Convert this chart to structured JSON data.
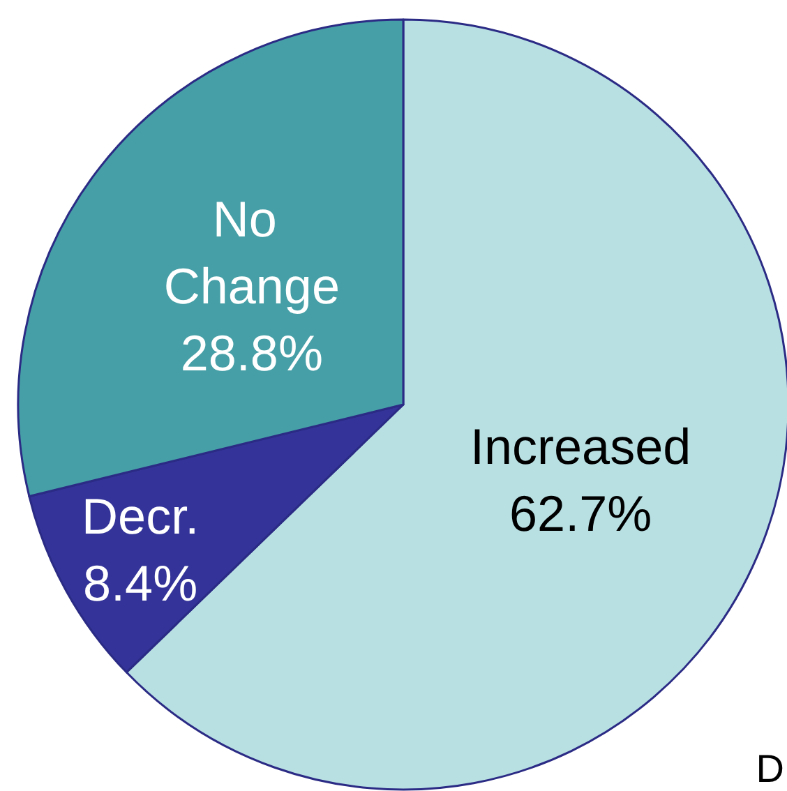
{
  "chart_data": {
    "type": "pie",
    "categories": [
      "Increased",
      "Decr.",
      "No Change"
    ],
    "values": [
      62.7,
      8.4,
      28.8
    ],
    "colors": [
      "#b8e0e3",
      "#333399",
      "#469fa6"
    ],
    "value_labels": [
      "62.7%",
      "8.4%",
      "28.8%"
    ],
    "annotations": [
      "D"
    ]
  }
}
